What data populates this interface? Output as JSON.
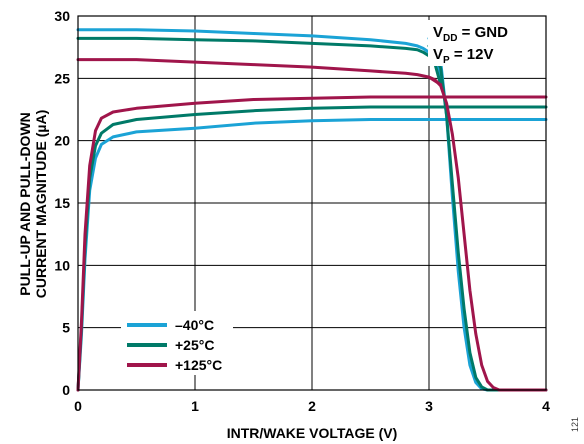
{
  "chart_data": {
    "type": "line",
    "title": "",
    "xlabel": "INTR/WAKE VOLTAGE (V)",
    "ylabel_lines": [
      "PULL-UP AND PULL-DOWN",
      "CURRENT MAGNITUDE (µA)"
    ],
    "xlim": [
      0,
      4
    ],
    "ylim": [
      0,
      30
    ],
    "xticks": [
      0,
      1,
      2,
      3,
      4
    ],
    "yticks": [
      0,
      5,
      10,
      15,
      20,
      25,
      30
    ],
    "grid": true,
    "legend_position": "bottom-left",
    "annotation": {
      "line1_main": "V",
      "line1_sub": "DD",
      "line1_rest": " = GND",
      "line2_main": "V",
      "line2_sub": "P",
      "line2_rest": " = 12V"
    },
    "figure_number": "121",
    "series": [
      {
        "name": "–40°C",
        "color": "#1ba3d6",
        "pullup": [
          [
            0,
            28.9
          ],
          [
            0.5,
            28.9
          ],
          [
            1.0,
            28.8
          ],
          [
            1.5,
            28.6
          ],
          [
            2.0,
            28.4
          ],
          [
            2.5,
            28.1
          ],
          [
            2.8,
            27.8
          ],
          [
            2.9,
            27.6
          ],
          [
            2.95,
            27.4
          ],
          [
            3.0,
            27.1
          ],
          [
            3.05,
            26.5
          ],
          [
            3.1,
            25.0
          ]
        ],
        "pulldown": [
          [
            0,
            0
          ],
          [
            0.03,
            4.5
          ],
          [
            0.06,
            10.5
          ],
          [
            0.1,
            16.0
          ],
          [
            0.15,
            18.6
          ],
          [
            0.2,
            19.7
          ],
          [
            0.3,
            20.3
          ],
          [
            0.5,
            20.7
          ],
          [
            1.0,
            21.0
          ],
          [
            1.5,
            21.4
          ],
          [
            2.0,
            21.6
          ],
          [
            2.5,
            21.7
          ],
          [
            3.0,
            21.7
          ],
          [
            4.0,
            21.7
          ]
        ],
        "falloff": [
          [
            3.0,
            28.2
          ],
          [
            3.05,
            27.6
          ],
          [
            3.1,
            26.3
          ],
          [
            3.15,
            22.0
          ],
          [
            3.2,
            15.5
          ],
          [
            3.25,
            9.5
          ],
          [
            3.3,
            5.0
          ],
          [
            3.35,
            2.0
          ],
          [
            3.4,
            0.6
          ],
          [
            3.45,
            0.1
          ],
          [
            3.5,
            0
          ],
          [
            4.0,
            0
          ]
        ]
      },
      {
        "name": "+25°C",
        "color": "#007a68",
        "pullup": [
          [
            0,
            28.2
          ],
          [
            0.5,
            28.2
          ],
          [
            1.0,
            28.1
          ],
          [
            1.5,
            28.0
          ],
          [
            2.0,
            27.8
          ],
          [
            2.5,
            27.6
          ],
          [
            2.8,
            27.4
          ],
          [
            2.9,
            27.3
          ],
          [
            2.95,
            27.1
          ],
          [
            3.0,
            26.8
          ],
          [
            3.05,
            26.2
          ],
          [
            3.1,
            24.5
          ]
        ],
        "pulldown": [
          [
            0,
            0
          ],
          [
            0.03,
            5.0
          ],
          [
            0.06,
            11.5
          ],
          [
            0.1,
            17.0
          ],
          [
            0.15,
            19.6
          ],
          [
            0.2,
            20.6
          ],
          [
            0.3,
            21.3
          ],
          [
            0.5,
            21.7
          ],
          [
            1.0,
            22.1
          ],
          [
            1.5,
            22.4
          ],
          [
            2.0,
            22.6
          ],
          [
            2.5,
            22.7
          ],
          [
            3.0,
            22.7
          ],
          [
            4.0,
            22.7
          ]
        ],
        "falloff": [
          [
            3.0,
            27.6
          ],
          [
            3.05,
            27.0
          ],
          [
            3.1,
            25.8
          ],
          [
            3.15,
            22.0
          ],
          [
            3.2,
            16.5
          ],
          [
            3.25,
            11.0
          ],
          [
            3.3,
            6.5
          ],
          [
            3.35,
            3.0
          ],
          [
            3.4,
            1.0
          ],
          [
            3.45,
            0.25
          ],
          [
            3.5,
            0
          ],
          [
            4.0,
            0
          ]
        ]
      },
      {
        "name": "+125°C",
        "color": "#a0154b",
        "pullup": [
          [
            0,
            26.5
          ],
          [
            0.5,
            26.5
          ],
          [
            1.0,
            26.3
          ],
          [
            1.5,
            26.1
          ],
          [
            2.0,
            25.9
          ],
          [
            2.5,
            25.6
          ],
          [
            2.8,
            25.4
          ],
          [
            2.9,
            25.3
          ],
          [
            3.0,
            25.1
          ],
          [
            3.1,
            24.5
          ]
        ],
        "pulldown": [
          [
            0,
            0
          ],
          [
            0.03,
            5.5
          ],
          [
            0.06,
            12.5
          ],
          [
            0.1,
            18.0
          ],
          [
            0.15,
            20.8
          ],
          [
            0.2,
            21.8
          ],
          [
            0.3,
            22.3
          ],
          [
            0.5,
            22.6
          ],
          [
            1.0,
            23.0
          ],
          [
            1.5,
            23.3
          ],
          [
            2.0,
            23.4
          ],
          [
            2.5,
            23.5
          ],
          [
            3.0,
            23.5
          ],
          [
            4.0,
            23.5
          ]
        ],
        "falloff": [
          [
            3.0,
            25.1
          ],
          [
            3.05,
            24.9
          ],
          [
            3.1,
            24.4
          ],
          [
            3.15,
            23.0
          ],
          [
            3.2,
            20.5
          ],
          [
            3.25,
            17.0
          ],
          [
            3.3,
            12.5
          ],
          [
            3.35,
            8.0
          ],
          [
            3.4,
            4.5
          ],
          [
            3.45,
            2.0
          ],
          [
            3.5,
            0.7
          ],
          [
            3.55,
            0.2
          ],
          [
            3.6,
            0
          ],
          [
            4.0,
            0
          ]
        ]
      }
    ]
  }
}
